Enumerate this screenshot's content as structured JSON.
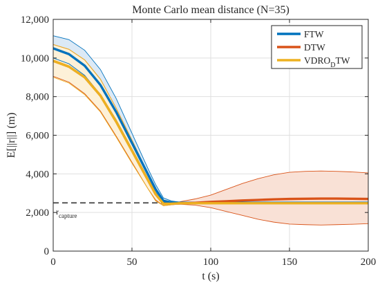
{
  "chart_data": {
    "type": "line",
    "title": "Monte Carlo mean distance (N=35)",
    "xlabel": "t (s)",
    "ylabel": "E[||r||] (m)",
    "xlim": [
      0,
      200
    ],
    "ylim": [
      0,
      12000
    ],
    "xticks": [
      0,
      50,
      100,
      150,
      200
    ],
    "xtick_labels": [
      "0",
      "50",
      "100",
      "150",
      "200"
    ],
    "yticks": [
      0,
      2000,
      4000,
      6000,
      8000,
      10000,
      12000
    ],
    "ytick_labels": [
      "0",
      "2,000",
      "4,000",
      "6,000",
      "8,000",
      "10,000",
      "12,000"
    ],
    "grid": true,
    "legend_position": "top-right",
    "x": [
      0,
      10,
      20,
      30,
      40,
      50,
      60,
      65,
      70,
      75,
      80,
      90,
      100,
      110,
      120,
      130,
      140,
      150,
      160,
      170,
      180,
      190,
      200
    ],
    "series": [
      {
        "name": "FTW",
        "color": "#0072BD",
        "fill": "#dbe9f6",
        "mean": [
          10500,
          10200,
          9600,
          8600,
          7200,
          5600,
          4000,
          3200,
          2600,
          2520,
          2500,
          2500,
          2500,
          2500,
          2500,
          2500,
          2500,
          2500,
          2500,
          2500,
          2500,
          2500,
          2500
        ],
        "upper": [
          11150,
          10950,
          10400,
          9400,
          7900,
          6100,
          4300,
          3450,
          2750,
          2600,
          2540,
          2520,
          2510,
          2510,
          2510,
          2510,
          2510,
          2510,
          2510,
          2510,
          2510,
          2510,
          2510
        ],
        "lower": [
          10000,
          9700,
          9100,
          8100,
          6800,
          5300,
          3800,
          3050,
          2500,
          2470,
          2450,
          2480,
          2490,
          2490,
          2490,
          2490,
          2490,
          2490,
          2490,
          2490,
          2490,
          2490,
          2490
        ]
      },
      {
        "name": "DTW",
        "color": "#D95319",
        "fill": "#f9e1d6",
        "mean": [
          9850,
          9550,
          9000,
          8050,
          6700,
          5200,
          3700,
          2950,
          2450,
          2450,
          2470,
          2500,
          2550,
          2580,
          2620,
          2650,
          2680,
          2700,
          2710,
          2720,
          2720,
          2710,
          2700
        ],
        "upper": [
          10700,
          10450,
          9900,
          8900,
          7400,
          5750,
          4050,
          3250,
          2650,
          2550,
          2550,
          2700,
          2900,
          3200,
          3500,
          3750,
          3950,
          4080,
          4130,
          4150,
          4130,
          4100,
          4050
        ],
        "lower": [
          9050,
          8750,
          8150,
          7250,
          5950,
          4600,
          3250,
          2650,
          2350,
          2400,
          2430,
          2380,
          2250,
          2050,
          1850,
          1650,
          1500,
          1400,
          1370,
          1350,
          1370,
          1390,
          1420
        ]
      },
      {
        "name": "VDRO_DTW",
        "color": "#EDB120",
        "fill": "#fdf1d8",
        "mean": [
          9850,
          9550,
          9000,
          8050,
          6700,
          5200,
          3700,
          2950,
          2450,
          2450,
          2480,
          2480,
          2480,
          2480,
          2480,
          2480,
          2480,
          2480,
          2480,
          2480,
          2480,
          2480,
          2480
        ],
        "upper": [
          10700,
          10450,
          9900,
          8900,
          7400,
          5750,
          4050,
          3250,
          2650,
          2550,
          2520,
          2510,
          2500,
          2500,
          2500,
          2500,
          2500,
          2500,
          2500,
          2500,
          2500,
          2500,
          2500
        ],
        "lower": [
          9000,
          8700,
          8100,
          7200,
          5900,
          4550,
          3250,
          2600,
          2350,
          2400,
          2440,
          2460,
          2460,
          2460,
          2460,
          2460,
          2460,
          2460,
          2460,
          2460,
          2460,
          2460,
          2460
        ]
      }
    ],
    "reference_line": {
      "y": 2500,
      "label_main": "r",
      "label_sub": "capture",
      "color": "#555555",
      "style": "dashed"
    },
    "legend_labels": {
      "FTW": "FTW",
      "DTW": "DTW",
      "VDRO_DTW": {
        "main": "VDRO",
        "sub": "D",
        "after": "TW"
      }
    }
  }
}
